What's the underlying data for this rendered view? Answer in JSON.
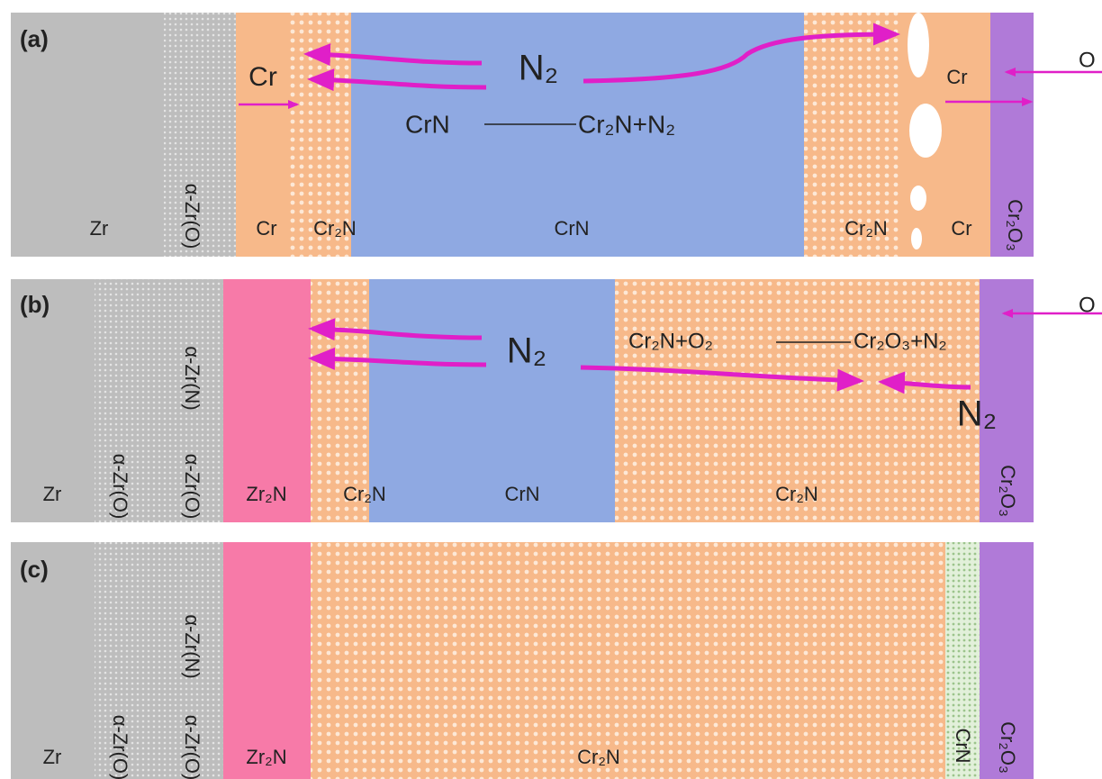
{
  "panels": [
    {
      "label": "(a)",
      "layers": [
        "Zr",
        "α-Zr(O)",
        "Cr",
        "Cr₂N",
        "CrN",
        "Cr₂N",
        "Cr",
        "Cr₂O₃"
      ],
      "notes": [
        "Cr",
        "Cr"
      ],
      "gases": [
        "N₂",
        "O"
      ],
      "reaction": [
        "CrN",
        "Cr₂N+N₂"
      ]
    },
    {
      "label": "(b)",
      "layers": [
        "Zr",
        "α-Zr(O)",
        "α-Zr(O)",
        "α-Zr(N)",
        "Zr₂N",
        "Cr₂N",
        "CrN",
        "Cr₂N",
        "Cr₂O₃"
      ],
      "gases": [
        "N₂",
        "N₂",
        "O"
      ],
      "reaction": [
        "Cr₂N+O₂",
        "Cr₂O₃+N₂"
      ]
    },
    {
      "label": "(c)",
      "layers": [
        "Zr",
        "α-Zr(O)",
        "α-Zr(O)",
        "α-Zr(N)",
        "Zr₂N",
        "Cr₂N",
        "CrN",
        "Cr₂O₃"
      ]
    }
  ]
}
